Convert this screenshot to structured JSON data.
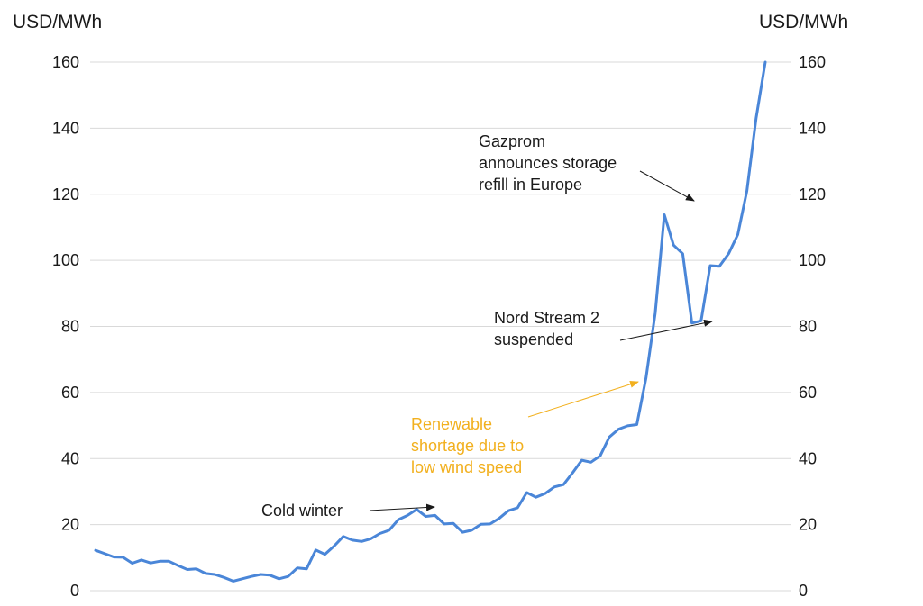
{
  "chart_data": {
    "type": "line",
    "title": "",
    "ylabel_left": "USD/MWh",
    "ylabel_right": "USD/MWh",
    "ylim": [
      0,
      160
    ],
    "yticks": [
      0,
      20,
      40,
      60,
      80,
      100,
      120,
      140,
      160
    ],
    "grid": true,
    "legend": "none",
    "series": [
      {
        "color": "#4a86d8",
        "values": [
          12.2,
          11.2,
          10.2,
          10.1,
          8.3,
          9.3,
          8.4,
          8.9,
          8.9,
          7.6,
          6.4,
          6.6,
          5.2,
          4.9,
          4.0,
          2.9,
          3.6,
          4.3,
          4.9,
          4.7,
          3.6,
          4.3,
          6.9,
          6.6,
          12.3,
          11.0,
          13.5,
          16.4,
          15.3,
          14.9,
          15.7,
          17.3,
          18.3,
          21.5,
          22.8,
          24.6,
          22.5,
          22.8,
          20.2,
          20.4,
          17.7,
          18.3,
          20.1,
          20.2,
          21.9,
          24.2,
          25.1,
          29.7,
          28.3,
          29.4,
          31.4,
          32.1,
          35.7,
          39.5,
          38.9,
          40.8,
          46.5,
          48.9,
          49.9,
          50.3,
          64.4,
          84.0,
          113.8,
          104.6,
          102.0,
          81.0,
          81.7,
          98.4,
          98.2,
          102.0,
          107.8,
          121.0,
          143.0,
          160.0
        ]
      }
    ],
    "annotations": [
      {
        "text_lines": [
          "Gazprom",
          "announces storage",
          "refill in Europe"
        ],
        "color": "#1a1a1a",
        "arrow_to_index": 62
      },
      {
        "text_lines": [
          "Nord Stream 2",
          "suspended"
        ],
        "color": "#1a1a1a",
        "arrow_to_index": 65
      },
      {
        "text_lines": [
          "Renewable",
          "shortage due to",
          "low wind speed"
        ],
        "color": "#f2b01e",
        "arrow_to_value": 63
      },
      {
        "text_lines": [
          "Cold winter"
        ],
        "color": "#1a1a1a",
        "arrow_to_index": 35
      }
    ]
  }
}
